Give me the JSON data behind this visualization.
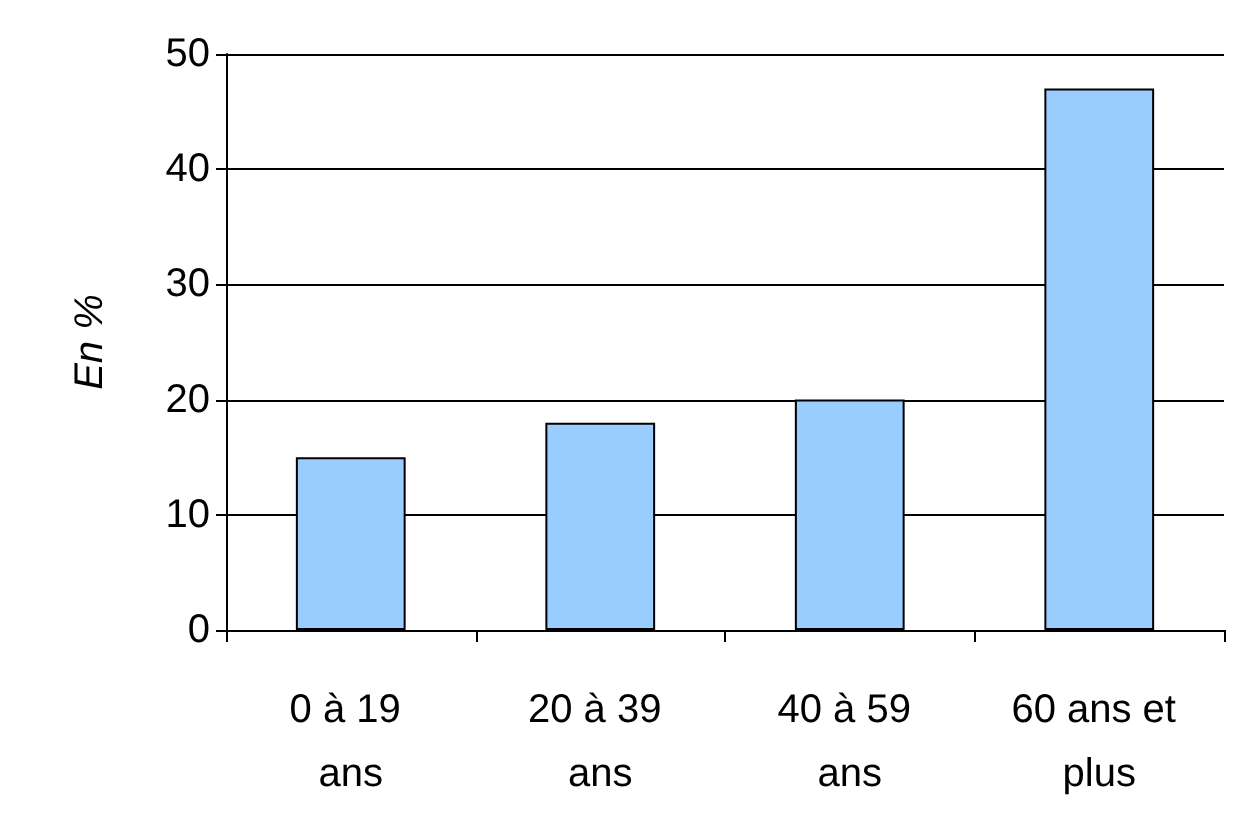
{
  "chart_data": {
    "type": "bar",
    "ylabel": "En %",
    "categories": [
      "0 à 19 ans",
      "20 à 39 ans",
      "40 à 59 ans",
      "60 ans et plus"
    ],
    "values": [
      15,
      18,
      20,
      47
    ],
    "color": "#99ccff",
    "ylim": [
      0,
      50
    ],
    "yticks": [
      0,
      10,
      20,
      30,
      40,
      50
    ],
    "grid": "y"
  }
}
